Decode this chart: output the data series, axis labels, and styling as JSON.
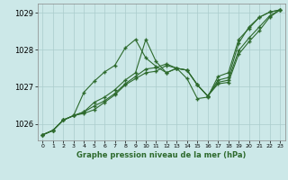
{
  "title": "",
  "xlabel": "Graphe pression niveau de la mer (hPa)",
  "ylabel": "",
  "bg_color": "#cce8e8",
  "grid_color": "#aacccc",
  "line_color": "#2d6a2d",
  "marker": "+",
  "xlim": [
    -0.5,
    23.5
  ],
  "ylim": [
    1025.55,
    1029.25
  ],
  "yticks": [
    1026,
    1027,
    1028,
    1029
  ],
  "ytick_labels": [
    "1026",
    "1027",
    "1028",
    "1029"
  ],
  "xticks": [
    0,
    1,
    2,
    3,
    4,
    5,
    6,
    7,
    8,
    9,
    10,
    11,
    12,
    13,
    14,
    15,
    16,
    17,
    18,
    19,
    20,
    21,
    22,
    23
  ],
  "series": [
    [
      1025.7,
      1025.82,
      1026.1,
      1026.22,
      1026.85,
      1027.15,
      1027.4,
      1027.58,
      1028.05,
      1028.28,
      1027.78,
      1027.55,
      1027.38,
      1027.5,
      1027.45,
      1027.05,
      1026.75,
      1027.18,
      1027.25,
      1028.18,
      1028.62,
      1028.88,
      1029.02,
      1029.08
    ],
    [
      1025.7,
      1025.82,
      1026.1,
      1026.22,
      1026.28,
      1026.38,
      1026.58,
      1026.78,
      1027.05,
      1027.22,
      1027.38,
      1027.42,
      1027.58,
      1027.5,
      1027.45,
      1027.05,
      1026.75,
      1027.08,
      1027.12,
      1027.88,
      1028.22,
      1028.52,
      1028.88,
      1029.08
    ],
    [
      1025.7,
      1025.82,
      1026.1,
      1026.22,
      1026.32,
      1026.48,
      1026.62,
      1026.82,
      1027.08,
      1027.28,
      1027.48,
      1027.52,
      1027.62,
      1027.5,
      1027.45,
      1027.05,
      1026.75,
      1027.12,
      1027.18,
      1027.98,
      1028.32,
      1028.62,
      1028.92,
      1029.08
    ],
    [
      1025.7,
      1025.82,
      1026.1,
      1026.22,
      1026.32,
      1026.58,
      1026.72,
      1026.92,
      1027.18,
      1027.38,
      1028.28,
      1027.68,
      1027.38,
      1027.5,
      1027.22,
      1026.68,
      1026.72,
      1027.28,
      1027.38,
      1028.28,
      1028.58,
      1028.88,
      1029.02,
      1029.08
    ]
  ]
}
